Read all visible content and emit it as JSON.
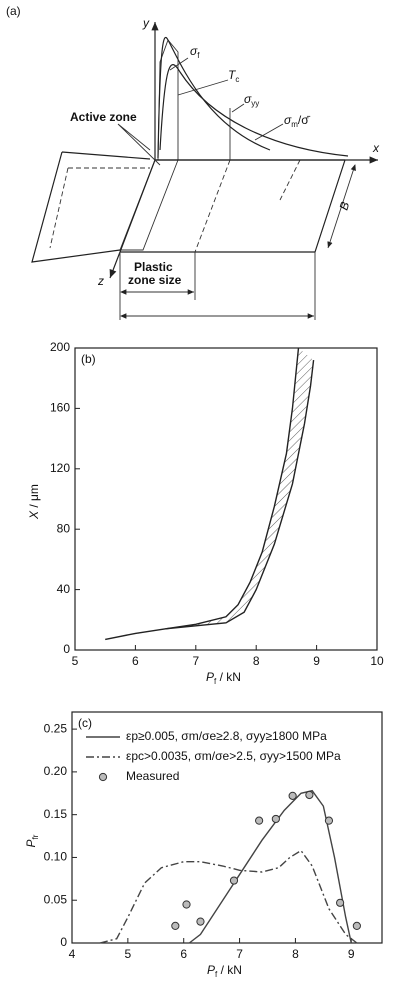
{
  "diagram": {
    "label": "(a)",
    "y_axis": "y",
    "x_axis": "x",
    "z_axis": "z",
    "sigma_f": {
      "italic": "σ",
      "sub": "f"
    },
    "T_c": {
      "italic": "T",
      "sub": "c"
    },
    "sigma_yy": {
      "italic": "σ",
      "sub": "yy"
    },
    "sigma_m": {
      "italic": "σ",
      "sub": "m",
      "rest": "/σ̄"
    },
    "active_zone": "Active zone",
    "B": "B",
    "plastic_zone": [
      "Plastic",
      "zone size"
    ]
  },
  "chart_data": [
    {
      "type": "area",
      "label": "(b)",
      "x_label": {
        "italic": "P",
        "sub": "f",
        "rest": " / kN"
      },
      "y_label": {
        "italic": "X",
        "rest": " / μm"
      },
      "xlim": [
        5,
        10
      ],
      "xticks": [
        5,
        6,
        7,
        8,
        9,
        10
      ],
      "ylim": [
        0,
        200
      ],
      "yticks": [
        0,
        40,
        80,
        120,
        160,
        200
      ],
      "color": "#222",
      "series": [
        {
          "x": [
            5.5,
            6.0,
            6.5,
            7.0,
            7.5,
            7.7,
            7.9,
            8.1,
            8.3,
            8.5,
            8.6,
            8.7
          ],
          "values": [
            7,
            11,
            14,
            17,
            22,
            30,
            45,
            65,
            95,
            130,
            160,
            200
          ]
        },
        {
          "x": [
            6.5,
            7.0,
            7.5,
            7.8,
            8.0,
            8.3,
            8.6,
            8.8,
            8.9,
            8.95
          ],
          "values": [
            14,
            16,
            18,
            25,
            40,
            70,
            110,
            150,
            175,
            192
          ]
        }
      ]
    },
    {
      "type": "line",
      "label": "(c)",
      "x_label": {
        "italic": "P",
        "sub": "f",
        "rest": " / kN"
      },
      "y_label": {
        "italic": "P",
        "sub": "fr"
      },
      "xlim": [
        4,
        9.55
      ],
      "xticks": [
        4,
        5,
        6,
        7,
        8,
        9
      ],
      "ylim": [
        0,
        0.27
      ],
      "yticks": [
        0,
        0.05,
        {
          "value": 0.1,
          "label": "0.10"
        },
        {
          "value": 0.15,
          "label": "0.15"
        },
        {
          "value": 0.2,
          "label": "0.20"
        },
        0.25
      ],
      "series": [
        {
          "name": "εp≥0.005, σm/σe≥2.8, σyy≥1800 MPa",
          "style": "solid",
          "color": "#444",
          "x": [
            6.1,
            6.3,
            6.6,
            7.0,
            7.4,
            7.8,
            8.1,
            8.3,
            8.5,
            8.7,
            8.9,
            9.0
          ],
          "values": [
            0,
            0.01,
            0.04,
            0.08,
            0.12,
            0.155,
            0.175,
            0.178,
            0.16,
            0.1,
            0.03,
            0
          ]
        },
        {
          "name": "εpc>0.0035, σm/σe>2.5, σyy>1500 MPa",
          "style": "dashdot",
          "color": "#444",
          "x": [
            4.5,
            4.8,
            5.0,
            5.3,
            5.6,
            6.0,
            6.3,
            6.7,
            7.0,
            7.4,
            7.7,
            7.9,
            8.1,
            8.3,
            8.6,
            8.9,
            9.1
          ],
          "values": [
            0,
            0.005,
            0.03,
            0.07,
            0.088,
            0.095,
            0.095,
            0.09,
            0.085,
            0.083,
            0.088,
            0.1,
            0.108,
            0.09,
            0.04,
            0.01,
            0
          ]
        },
        {
          "name": "Measured",
          "style": "marker",
          "color": "#bbb",
          "x": [
            5.85,
            6.05,
            6.3,
            6.9,
            7.35,
            7.65,
            7.95,
            8.25,
            8.6,
            8.8,
            9.1
          ],
          "values": [
            0.02,
            0.045,
            0.025,
            0.073,
            0.143,
            0.145,
            0.172,
            0.173,
            0.143,
            0.047,
            0.02
          ]
        }
      ]
    }
  ]
}
